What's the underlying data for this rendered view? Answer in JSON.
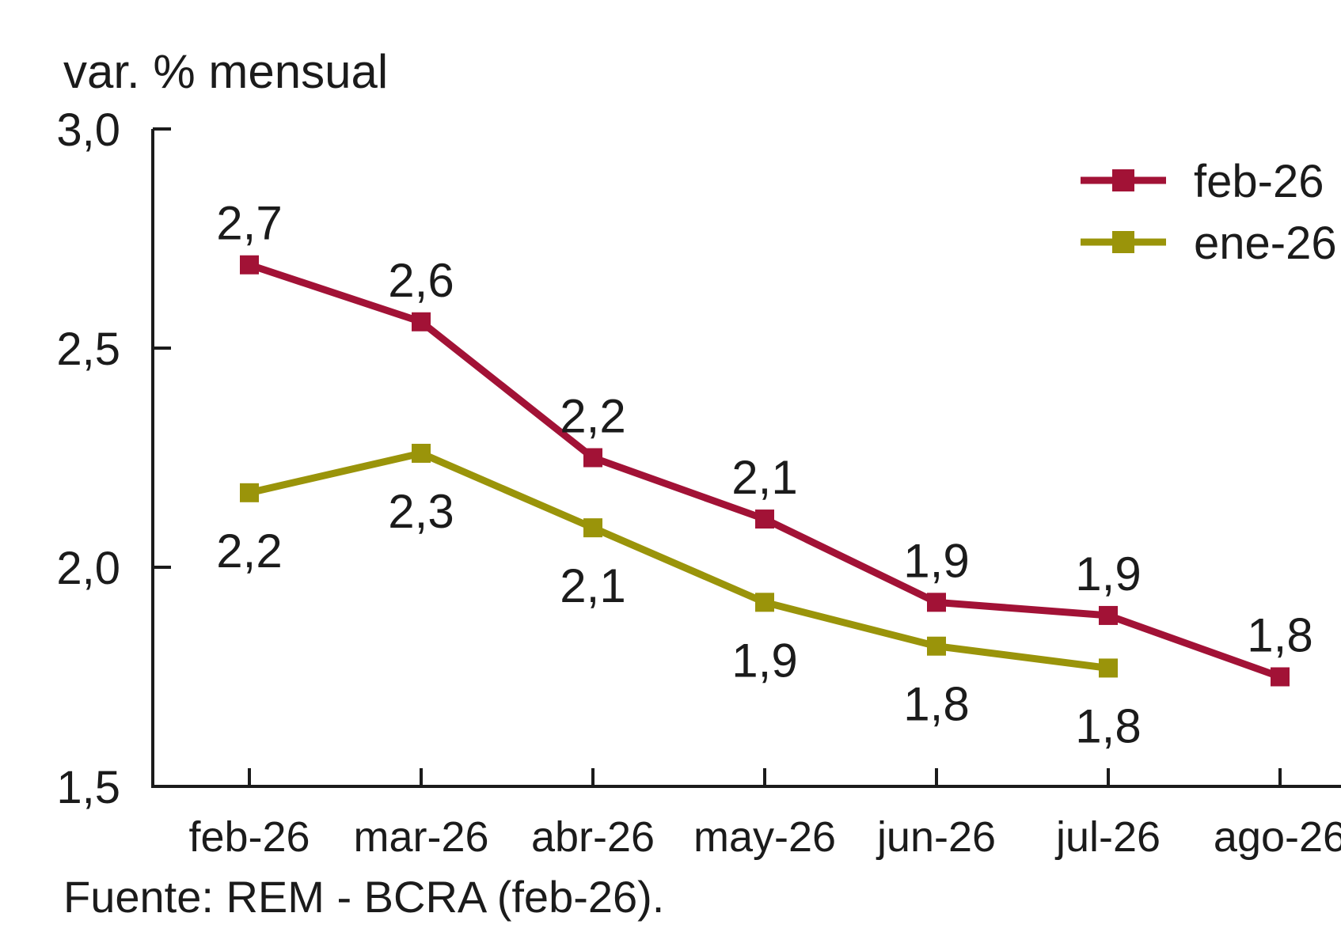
{
  "chart_data": {
    "type": "line",
    "unit_label": "var. % mensual",
    "source": "Fuente: REM - BCRA (feb-26).",
    "categories": [
      "feb-26",
      "mar-26",
      "abr-26",
      "may-26",
      "jun-26",
      "jul-26",
      "ago-26"
    ],
    "y_axis": {
      "min": 1.5,
      "max": 3.0,
      "tick_values": [
        3.0,
        2.5,
        2.0,
        1.5
      ],
      "tick_labels": [
        "3,0",
        "2,5",
        "2,0",
        "1,5"
      ]
    },
    "grid": false,
    "legend_position": "top-right",
    "colors": {
      "feb_26_series": "#A21236",
      "ene_26_series": "#9A940A",
      "axis_and_text": "#1b1b1b"
    },
    "series": [
      {
        "name": "feb-26",
        "color": "#A21236",
        "label_position": "above",
        "values": [
          2.7,
          2.6,
          2.2,
          2.1,
          1.9,
          1.9,
          1.8
        ],
        "plot_values": [
          2.69,
          2.56,
          2.25,
          2.11,
          1.92,
          1.89,
          1.75
        ],
        "labels": [
          "2,7",
          "2,6",
          "2,2",
          "2,1",
          "1,9",
          "1,9",
          "1,8"
        ]
      },
      {
        "name": "ene-26",
        "color": "#9A940A",
        "label_position": "below",
        "values": [
          2.2,
          2.3,
          2.1,
          1.9,
          1.8,
          1.8,
          null
        ],
        "plot_values": [
          2.17,
          2.26,
          2.09,
          1.92,
          1.82,
          1.77,
          null
        ],
        "labels": [
          "2,2",
          "2,3",
          "2,1",
          "1,9",
          "1,8",
          "1,8",
          null
        ]
      }
    ],
    "legend": [
      {
        "label": "feb-26"
      },
      {
        "label": "ene-26"
      }
    ]
  }
}
